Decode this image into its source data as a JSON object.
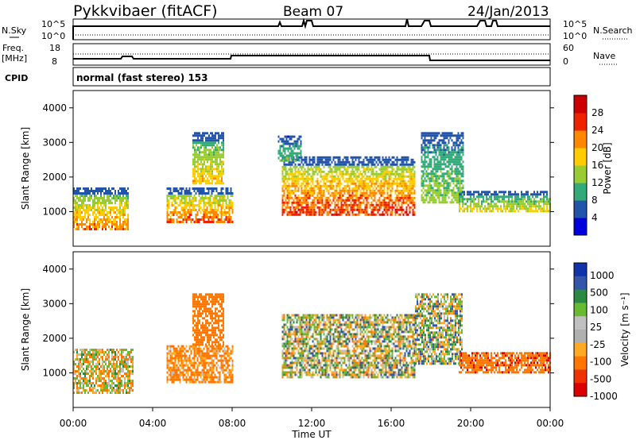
{
  "header": {
    "title": "Pykkvibaer (fitACF)",
    "beam": "Beam 07",
    "date": "24/Jan/2013"
  },
  "top_panels": {
    "nsky": {
      "label": "N.Sky",
      "tick_top": "10^5",
      "tick_bottom": "10^0",
      "right_tick_top": "10^5",
      "right_tick_bottom": "10^0",
      "right_label": "N.Search"
    },
    "freq": {
      "label_line1": "Freq.",
      "label_line2": "[MHz]",
      "tick_top": "18",
      "tick_bottom": "8",
      "right_tick_top": "60",
      "right_tick_bottom": "0",
      "right_label": "Nave"
    },
    "cpid": {
      "label": "CPID",
      "text": "normal (fast stereo) 153"
    }
  },
  "axes": {
    "ylabel": "Slant Range [km]",
    "xlabel": "Time UT",
    "x_ticks": [
      "00:00",
      "04:00",
      "08:00",
      "12:00",
      "16:00",
      "20:00",
      "00:00"
    ],
    "y_ticks": [
      "1000",
      "2000",
      "3000",
      "4000"
    ]
  },
  "power_scale": {
    "label": "Power [dB]",
    "ticks": [
      "4",
      "8",
      "12",
      "16",
      "20",
      "24",
      "28"
    ]
  },
  "velocity_scale": {
    "label": "Velocity [m s⁻¹]",
    "ticks": [
      "1000",
      "500",
      "100",
      "25",
      "-25",
      "-100",
      "-500",
      "-1000"
    ]
  },
  "colors": {
    "power": [
      "#0000dd",
      "#2255aa",
      "#33aa77",
      "#99cc33",
      "#ffcc00",
      "#ff8800",
      "#ee2200",
      "#cc0000"
    ],
    "velocity": [
      "#1133aa",
      "#3355aa",
      "#2a8a44",
      "#66bb33",
      "#c0c0c0",
      "#b0b0b0",
      "#ffaa22",
      "#ff7700",
      "#ee3300",
      "#dd0000"
    ]
  },
  "chart_data": [
    {
      "type": "heatmap",
      "name_hint": "power",
      "x_range_hours": [
        0,
        24
      ],
      "ylim": [
        0,
        4500
      ],
      "regions": [
        {
          "t0": 0.0,
          "t1": 2.8,
          "r0": 500,
          "r1": 1700,
          "pmax": 26
        },
        {
          "t0": 4.7,
          "t1": 8.0,
          "r0": 700,
          "r1": 1700,
          "pmax": 28
        },
        {
          "t0": 6.0,
          "t1": 7.6,
          "r0": 1800,
          "r1": 3300,
          "pmax": 22
        },
        {
          "t0": 10.5,
          "t1": 17.2,
          "r0": 900,
          "r1": 2600,
          "pmax": 30
        },
        {
          "t0": 10.3,
          "t1": 11.5,
          "r0": 2500,
          "r1": 3200,
          "pmax": 14
        },
        {
          "t0": 17.5,
          "t1": 19.6,
          "r0": 1300,
          "r1": 3300,
          "pmax": 16
        },
        {
          "t0": 19.4,
          "t1": 24.0,
          "r0": 1000,
          "r1": 1600,
          "pmax": 20
        }
      ]
    },
    {
      "type": "heatmap",
      "name_hint": "velocity",
      "x_range_hours": [
        0,
        24
      ],
      "ylim": [
        0,
        4500
      ],
      "regions": [
        {
          "t0": 0.0,
          "t1": 3.0,
          "r0": 400,
          "r1": 1700,
          "vmean": -50
        },
        {
          "t0": 4.7,
          "t1": 8.0,
          "r0": 700,
          "r1": 1800,
          "vmean": -150
        },
        {
          "t0": 6.0,
          "t1": 7.6,
          "r0": 1800,
          "r1": 3300,
          "vmean": -300
        },
        {
          "t0": 10.5,
          "t1": 17.2,
          "r0": 900,
          "r1": 2700,
          "vmean": 0
        },
        {
          "t0": 17.2,
          "t1": 19.6,
          "r0": 1300,
          "r1": 3300,
          "vmean": 10
        },
        {
          "t0": 19.4,
          "t1": 24.0,
          "r0": 1000,
          "r1": 1600,
          "vmean": -400
        }
      ]
    }
  ]
}
